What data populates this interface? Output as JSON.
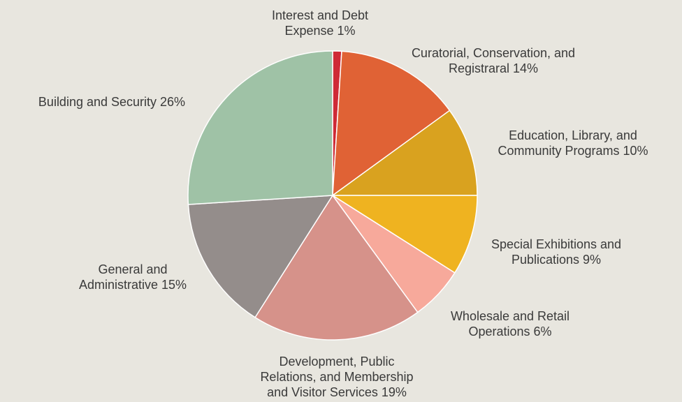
{
  "chart_data": {
    "type": "pie",
    "slices": [
      {
        "label_lines": [
          "Interest and Debt",
          "Expense 1%"
        ],
        "value": 1,
        "color": "#cf2a36"
      },
      {
        "label_lines": [
          "Curatorial, Conservation, and",
          "Registraral 14%"
        ],
        "value": 14,
        "color": "#e06235"
      },
      {
        "label_lines": [
          "Education, Library, and",
          "Community Programs 10%"
        ],
        "value": 10,
        "color": "#d9a21f"
      },
      {
        "label_lines": [
          "Special Exhibitions and",
          "Publications 9%"
        ],
        "value": 9,
        "color": "#efb320"
      },
      {
        "label_lines": [
          "Wholesale and Retail",
          "Operations 6%"
        ],
        "value": 6,
        "color": "#f7a99b"
      },
      {
        "label_lines": [
          "Development, Public",
          "Relations, and Membership",
          "and Visitor Services 19%"
        ],
        "value": 19,
        "color": "#d6928a"
      },
      {
        "label_lines": [
          "General and",
          "Administrative 15%"
        ],
        "value": 15,
        "color": "#948d8b"
      },
      {
        "label_lines": [
          "Building and Security 26%"
        ],
        "value": 26,
        "color": "#9fc2a6"
      }
    ]
  }
}
